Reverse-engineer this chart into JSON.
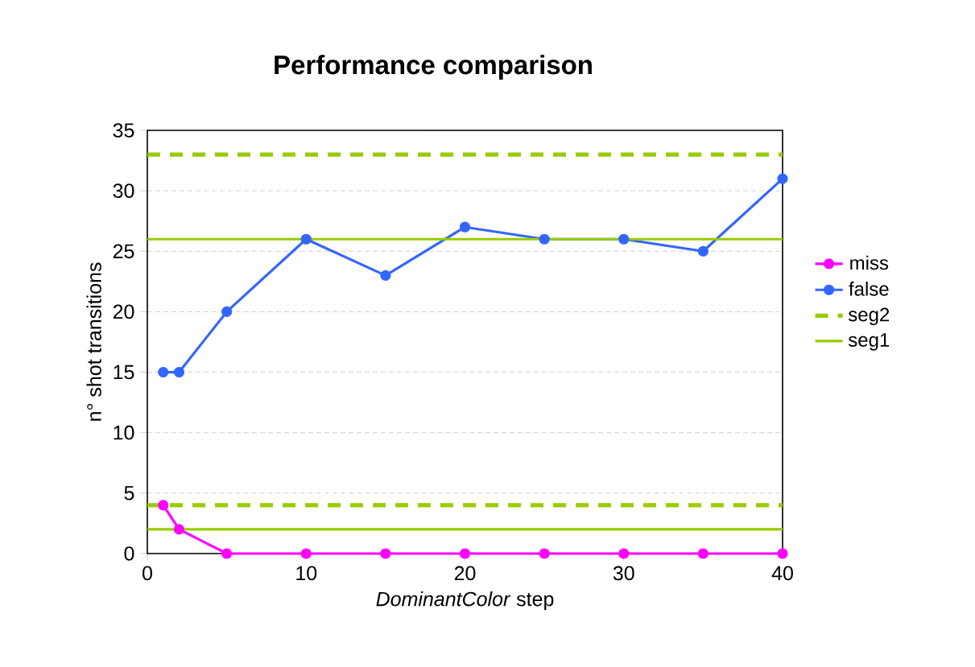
{
  "chart_data": {
    "type": "line",
    "title": "Performance comparison",
    "xlabel": "*DominantColor* step",
    "ylabel": "n° shot transitions",
    "xlim": [
      0,
      40
    ],
    "ylim": [
      0,
      35
    ],
    "xticks": [
      0,
      10,
      20,
      30,
      40
    ],
    "yticks": [
      0,
      5,
      10,
      15,
      20,
      25,
      30,
      35
    ],
    "grid": "y",
    "legend": "right",
    "series": [
      {
        "name": "miss",
        "color": "#ff00ff",
        "marker": "circle",
        "line_style": "solid",
        "x": [
          1,
          2,
          5,
          10,
          15,
          20,
          25,
          30,
          35,
          40
        ],
        "values": [
          4,
          2,
          0,
          0,
          0,
          0,
          0,
          0,
          0,
          0
        ]
      },
      {
        "name": "false",
        "color": "#3366ff",
        "marker": "circle",
        "line_style": "solid",
        "x": [
          1,
          2,
          5,
          10,
          15,
          20,
          25,
          30,
          35,
          40
        ],
        "values": [
          15,
          15,
          20,
          26,
          23,
          27,
          26,
          26,
          25,
          31
        ]
      },
      {
        "name": "seg2",
        "color": "#99cc00",
        "marker": "none",
        "line_style": "dashed",
        "x": [
          0,
          40
        ],
        "values": [
          33,
          33
        ]
      },
      {
        "name": "seg1",
        "color": "#99cc00",
        "marker": "none",
        "line_style": "solid",
        "x": [
          0,
          40
        ],
        "values": [
          26,
          26
        ]
      },
      {
        "color": "#99cc00",
        "marker": "none",
        "line_style": "dashed",
        "x": [
          0,
          40
        ],
        "values": [
          4,
          4
        ]
      },
      {
        "color": "#99cc00",
        "marker": "none",
        "line_style": "solid",
        "x": [
          0,
          40
        ],
        "values": [
          2,
          2
        ]
      }
    ]
  }
}
